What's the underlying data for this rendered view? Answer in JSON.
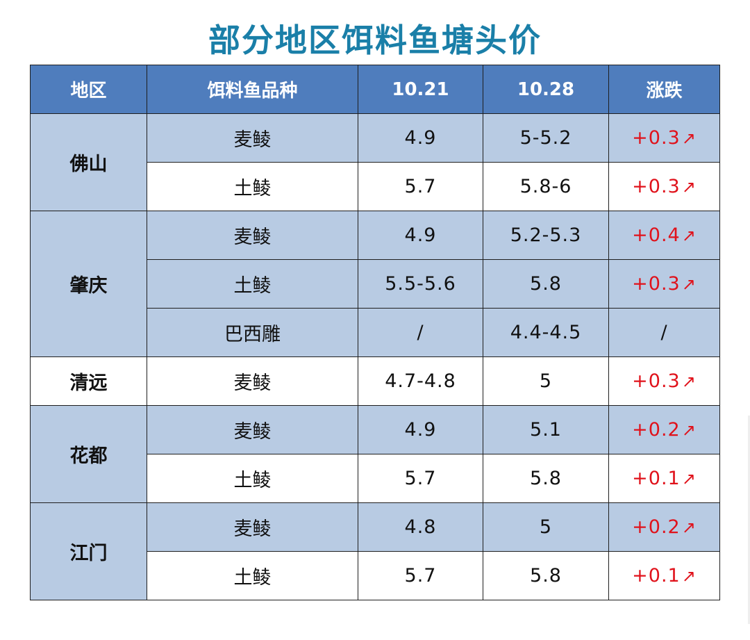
{
  "title": "部分地区饵料鱼塘头价",
  "headers": [
    "地区",
    "饵料鱼品种",
    "10.21",
    "10.28",
    "涨跌"
  ],
  "rows": [
    {
      "region": "佛山",
      "variety": "麦鲮",
      "d1021": "4.9",
      "d1028": "5-5.2",
      "change": "+0.3",
      "arrow": "↗"
    },
    {
      "variety": "土鲮",
      "d1021": "5.7",
      "d1028": "5.8-6",
      "change": "+0.3",
      "arrow": "↗"
    },
    {
      "region": "肇庆",
      "variety": "麦鲮",
      "d1021": "4.9",
      "d1028": "5.2-5.3",
      "change": "+0.4",
      "arrow": "↗"
    },
    {
      "variety": "土鲮",
      "d1021": "5.5-5.6",
      "d1028": "5.8",
      "change": "+0.3",
      "arrow": "↗"
    },
    {
      "variety": "巴西雕",
      "d1021": "/",
      "d1028": "4.4-4.5",
      "change": "/",
      "arrow": ""
    },
    {
      "region": "清远",
      "variety": "麦鲮",
      "d1021": "4.7-4.8",
      "d1028": "5",
      "change": "+0.3",
      "arrow": "↗"
    },
    {
      "region": "花都",
      "variety": "麦鲮",
      "d1021": "4.9",
      "d1028": "5.1",
      "change": "+0.2",
      "arrow": "↗"
    },
    {
      "variety": "土鲮",
      "d1021": "5.7",
      "d1028": "5.8",
      "change": "+0.1",
      "arrow": "↗"
    },
    {
      "region": "江门",
      "variety": "麦鲮",
      "d1021": "4.8",
      "d1028": "5",
      "change": "+0.2",
      "arrow": "↗"
    },
    {
      "variety": "土鲮",
      "d1021": "5.7",
      "d1028": "5.8",
      "change": "+0.1",
      "arrow": "↗"
    }
  ],
  "colors": {
    "title": "#1a7fa8",
    "header_bg": "#4f7dbd",
    "band_bg": "#b8cbe3",
    "rise": "#e0121b"
  }
}
